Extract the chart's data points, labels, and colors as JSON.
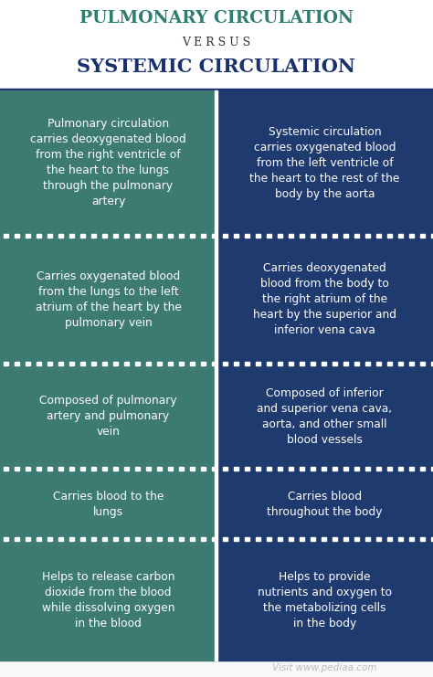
{
  "title1": "PULMONARY CIRCULATION",
  "versus": "V E R S U S",
  "title2": "SYSTEMIC CIRCULATION",
  "title1_color": "#2e7d6e",
  "title2_color": "#1a2f6e",
  "versus_color": "#333333",
  "left_bg": "#3d7a72",
  "right_bg": "#1e3a6e",
  "text_color": "#ffffff",
  "watermark": "Visit www.pediaa.com",
  "watermark_color": "#bbbbbb",
  "rows": [
    {
      "left": "Pulmonary circulation\ncarries deoxygenated blood\nfrom the right ventricle of\nthe heart to the lungs\nthrough the pulmonary\nartery",
      "right": "Systemic circulation\ncarries oxygenated blood\nfrom the left ventricle of\nthe heart to the rest of the\nbody by the aorta"
    },
    {
      "left": "Carries oxygenated blood\nfrom the lungs to the left\natrium of the heart by the\npulmonary vein",
      "right": "Carries deoxygenated\nblood from the body to\nthe right atrium of the\nheart by the superior and\ninferior vena cava"
    },
    {
      "left": "Composed of pulmonary\nartery and pulmonary\nvein",
      "right": "Composed of inferior\nand superior vena cava,\naorta, and other small\nblood vessels"
    },
    {
      "left": "Carries blood to the\nlungs",
      "right": "Carries blood\nthroughout the body"
    },
    {
      "left": "Helps to release carbon\ndioxide from the blood\nwhile dissolving oxygen\nin the blood",
      "right": "Helps to provide\nnutrients and oxygen to\nthe metabolizing cells\nin the body"
    }
  ],
  "row_heights_rel": [
    6.2,
    5.5,
    4.5,
    3.0,
    5.2
  ]
}
